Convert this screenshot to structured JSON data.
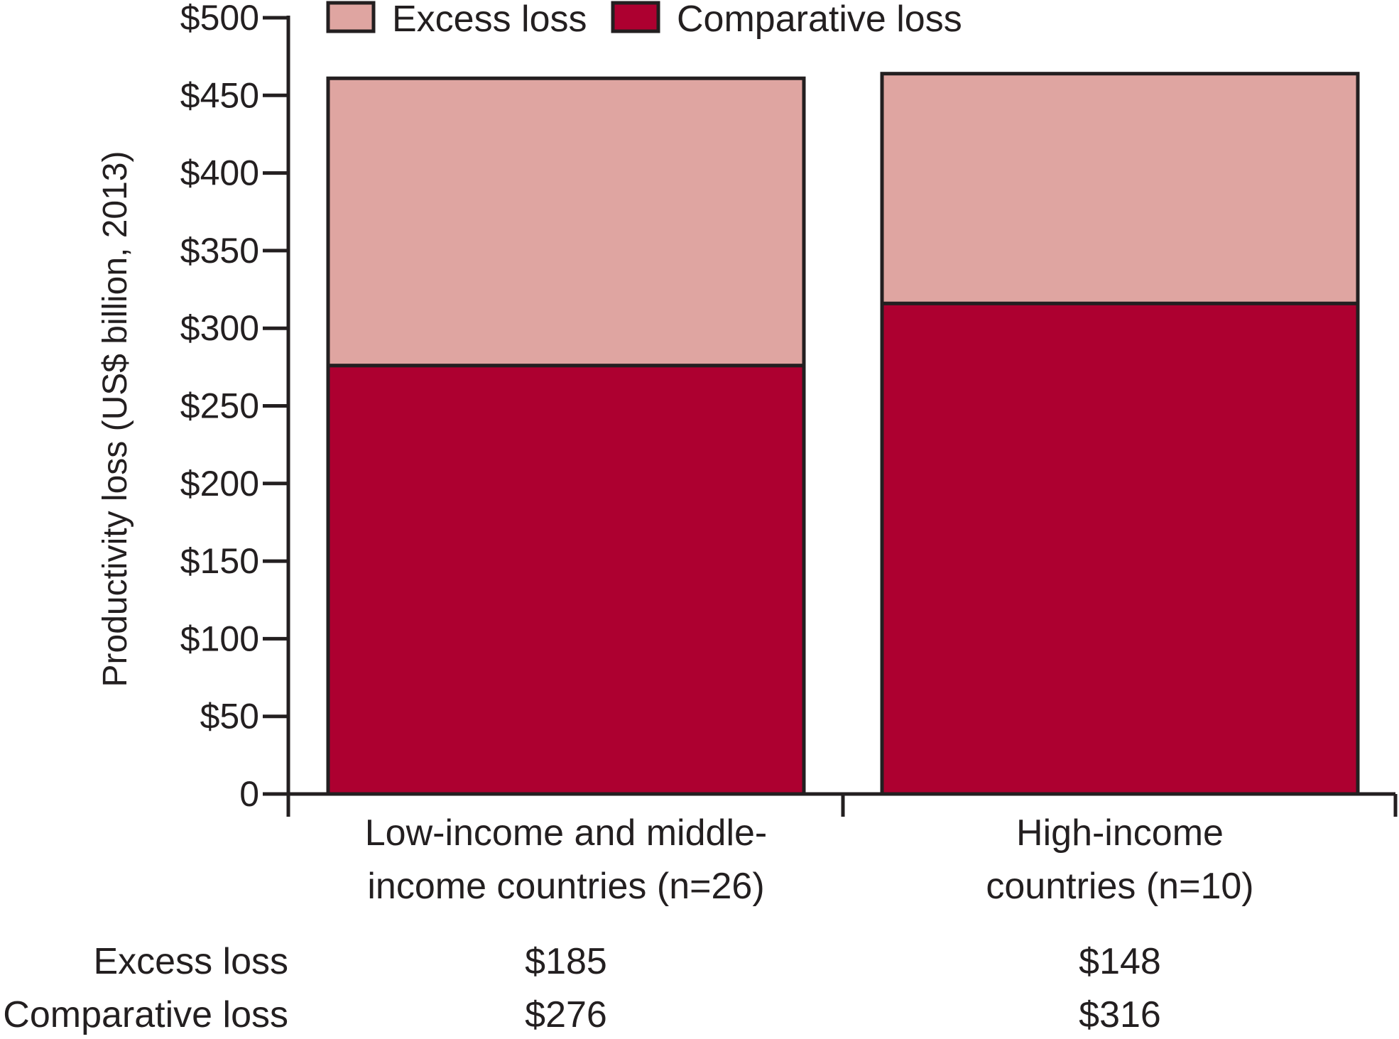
{
  "chart_data": {
    "type": "bar",
    "stacked": true,
    "ylabel": "Productivity loss (US$ billion, 2013)",
    "ylim": [
      0,
      500
    ],
    "yticks": [
      0,
      50,
      100,
      150,
      200,
      250,
      300,
      350,
      400,
      450,
      500
    ],
    "ytick_labels": [
      "0",
      "$50",
      "$100",
      "$150",
      "$200",
      "$250",
      "$300",
      "$350",
      "$400",
      "$450",
      "$500"
    ],
    "categories": [
      [
        "Low-income and middle-",
        "income countries (n=26)"
      ],
      [
        "High-income",
        "countries (n=10)"
      ]
    ],
    "series": [
      {
        "name": "Comparative loss",
        "values": [
          276,
          316
        ],
        "color": "#ad0030"
      },
      {
        "name": "Excess loss",
        "values": [
          185,
          148
        ],
        "color": "#dfa5a1"
      }
    ],
    "legend": {
      "placement": "top",
      "order": [
        "Excess loss",
        "Comparative loss"
      ]
    },
    "grid": false
  },
  "table": {
    "rows": [
      {
        "label": "Excess loss",
        "values": [
          "$185",
          "$148"
        ]
      },
      {
        "label": "Comparative loss",
        "values": [
          "$276",
          "$316"
        ]
      }
    ]
  }
}
